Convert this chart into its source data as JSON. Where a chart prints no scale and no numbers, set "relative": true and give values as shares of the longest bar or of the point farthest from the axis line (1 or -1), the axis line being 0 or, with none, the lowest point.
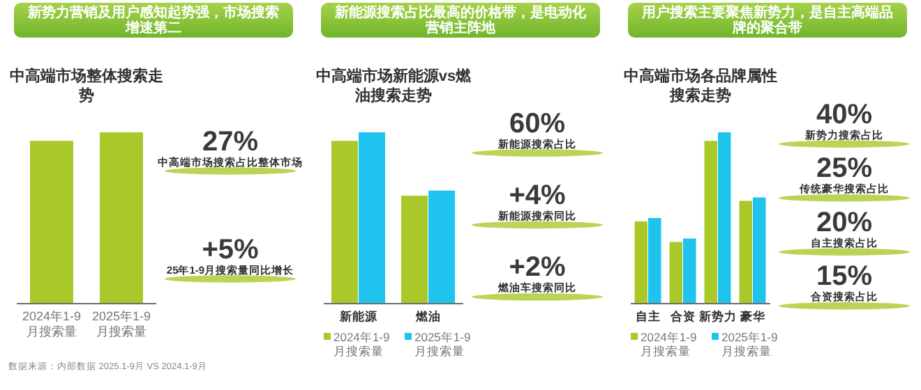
{
  "chart_data": [
    {
      "type": "bar",
      "relative": true,
      "title": "新势力营销及用户感知起势强，市场搜索增速第二",
      "subtitle": "中高端市场整体搜索走势",
      "categories": [
        "2024年1-9月搜索量",
        "2025年1-9月搜索量"
      ],
      "series": [
        {
          "color": "#a9c92b",
          "values": [
            0.95,
            1
          ]
        }
      ],
      "annotations": [
        "27%",
        "中高端市场搜索占比整体市场",
        "+5%",
        "25年1-9月搜索量同比增长",
        "数据来源：内部数据 2025.1-9月 VS 2024.1-9月"
      ]
    },
    {
      "type": "bar",
      "relative": true,
      "title": "新能源搜索占比最高的价格带，是电动化营销主阵地",
      "subtitle": "中高端市场新能源vs燃油搜索走势",
      "categories": [
        "新能源",
        "燃油"
      ],
      "legend": "bottom",
      "series": [
        {
          "name": "2024年1-9月搜索量",
          "color": "#a9c92b",
          "values": [
            0.95,
            0.63
          ]
        },
        {
          "name": "2025年1-9月搜索量",
          "color": "#1ec3ee",
          "values": [
            1,
            0.66
          ]
        }
      ],
      "annotations": [
        "60%",
        "新能源搜索占比",
        "+4%",
        "新能源搜索同比",
        "+2%",
        "燃油车搜索同比"
      ]
    },
    {
      "type": "bar",
      "relative": true,
      "title": "用户搜索主要聚焦新势力，是自主高端品牌的聚合带",
      "subtitle": "中高端市场各品牌属性搜索走势",
      "categories": [
        "自主",
        "合资",
        "新势力",
        "豪华"
      ],
      "legend": "bottom",
      "series": [
        {
          "name": "2024年1-9月搜索量",
          "color": "#a9c92b",
          "values": [
            0.48,
            0.36,
            0.95,
            0.6
          ]
        },
        {
          "name": "2025年1-9月搜索量",
          "color": "#1ec3ee",
          "values": [
            0.5,
            0.38,
            1,
            0.62
          ]
        }
      ],
      "annotations": [
        "40%",
        "新势力搜索占比",
        "25%",
        "传统豪华搜索占比",
        "20%",
        "自主搜索占比",
        "15%",
        "合资搜索占比"
      ]
    }
  ]
}
